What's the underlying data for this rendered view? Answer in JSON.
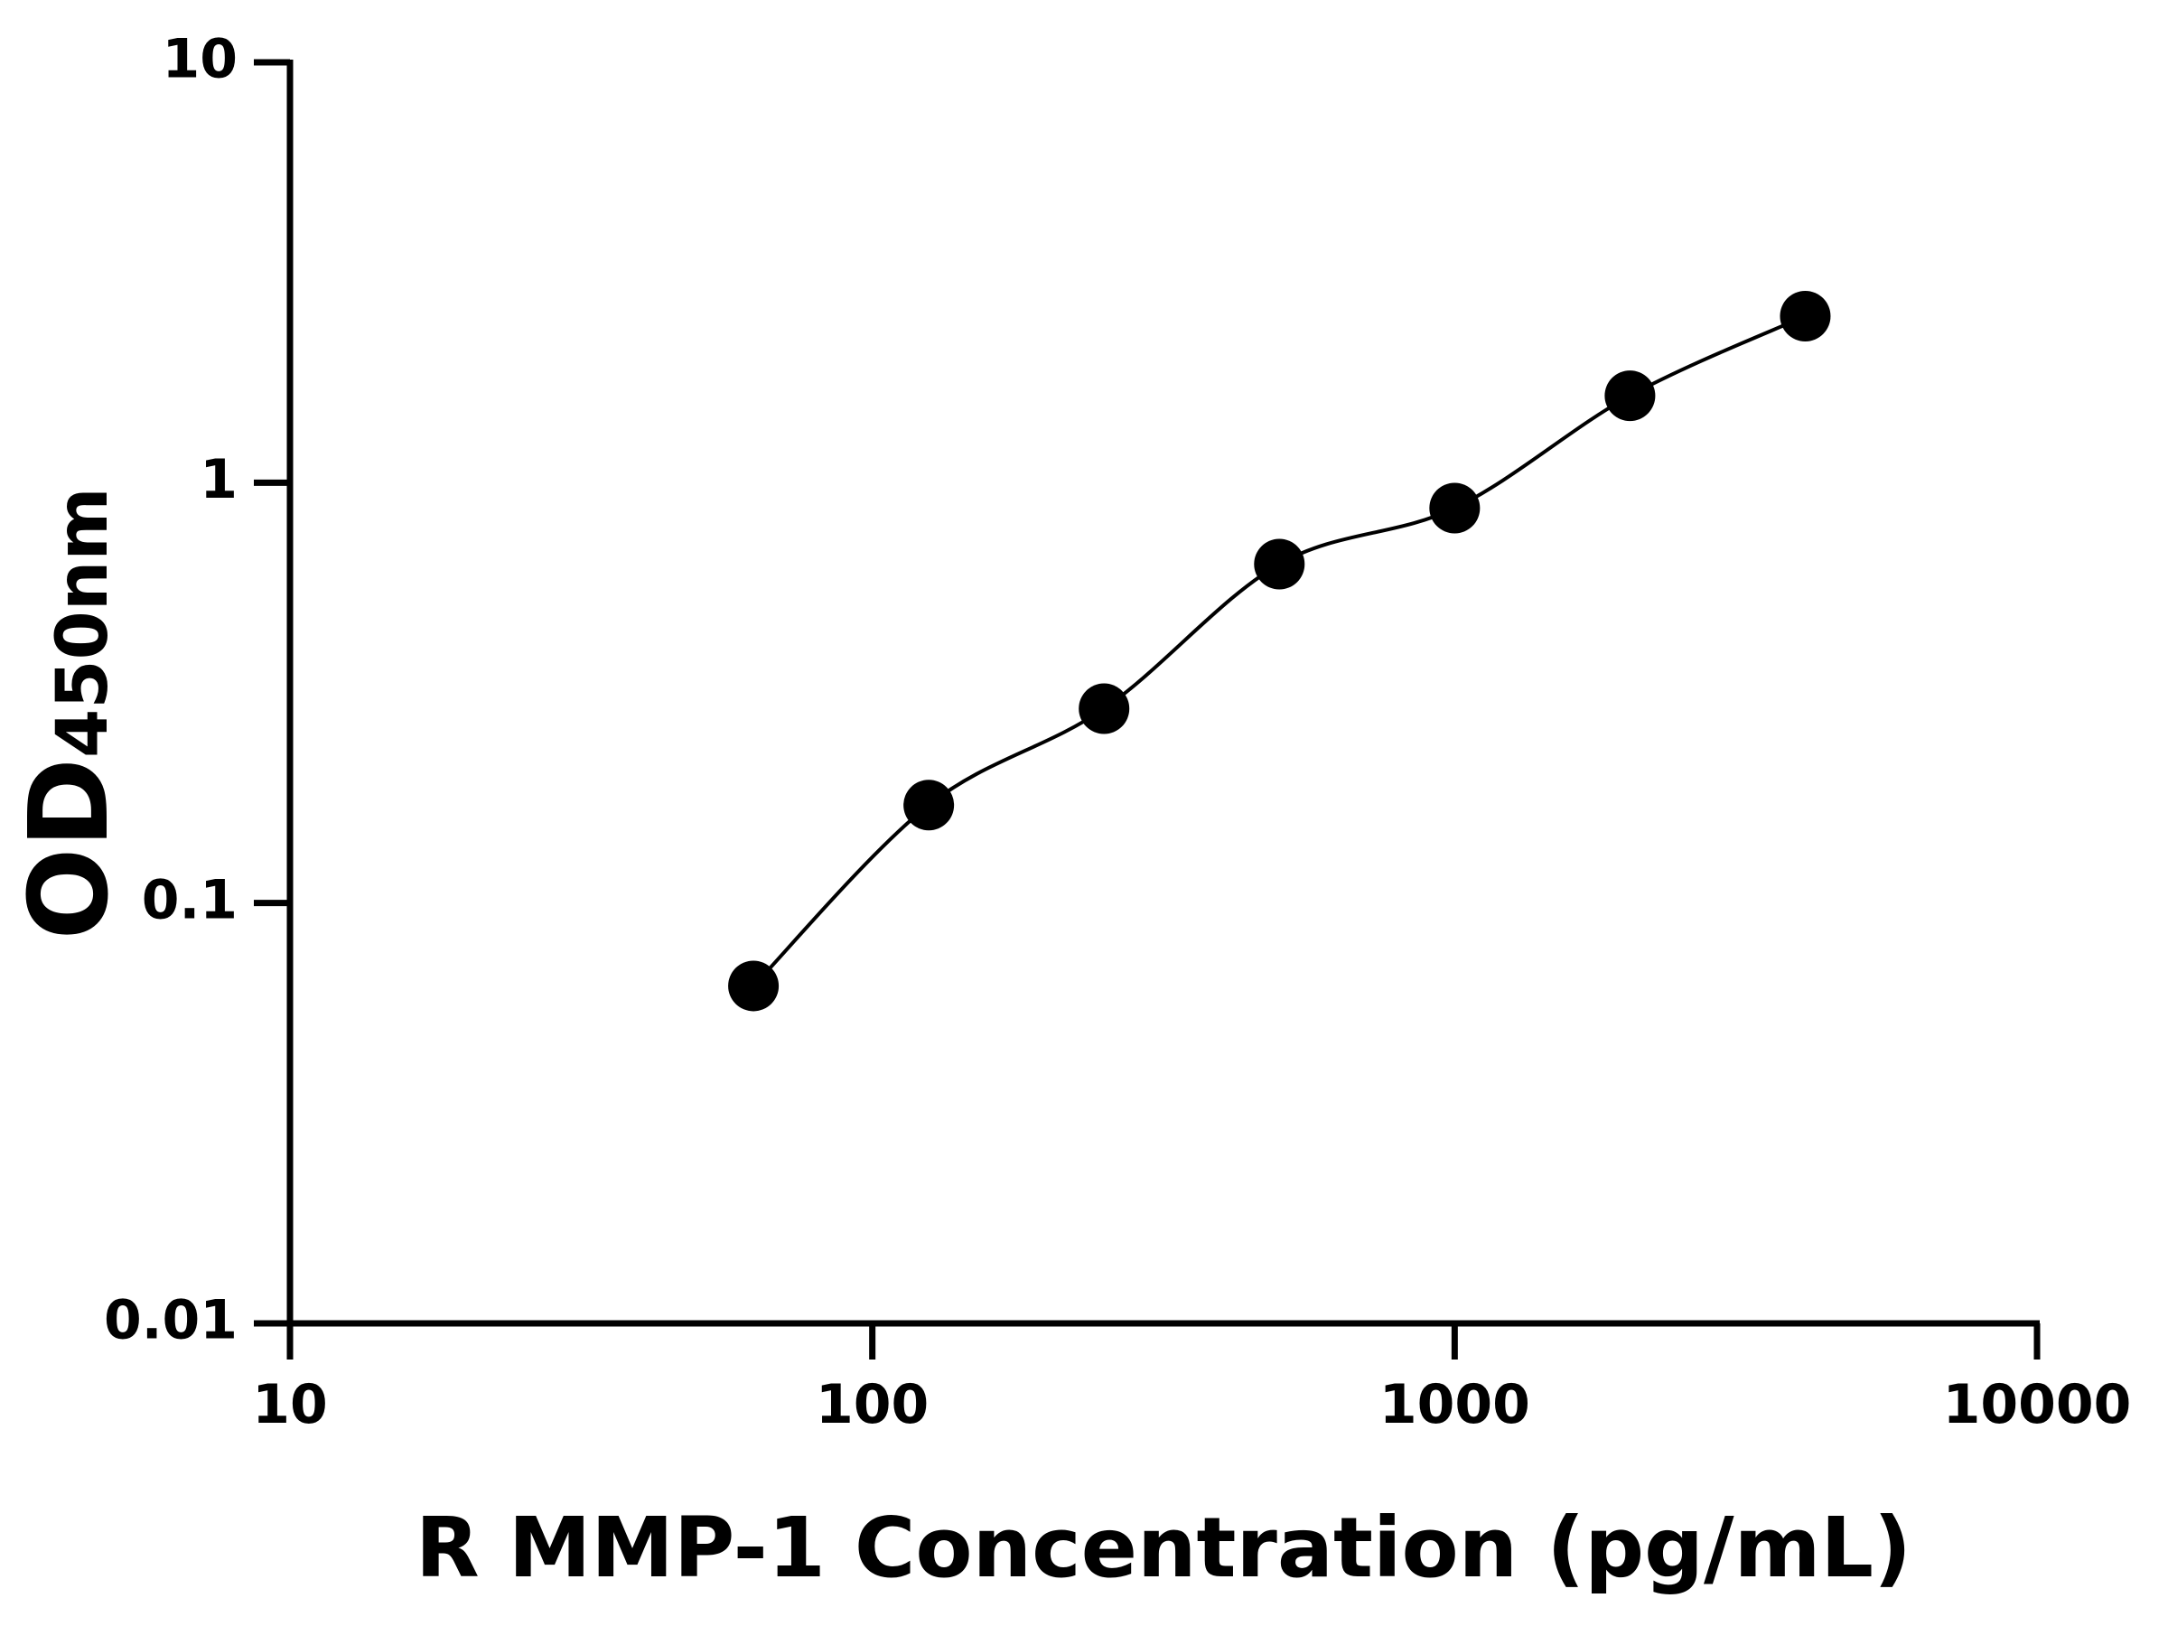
{
  "chart_data": {
    "type": "scatter",
    "x_label": "R MMP-1 Concentration (pg/mL)",
    "y_label": "OD",
    "y_label_sub": "450nm",
    "x": [
      62.5,
      125,
      250,
      500,
      1000,
      2000,
      4000
    ],
    "values": [
      0.0635,
      0.171,
      0.29,
      0.64,
      0.87,
      1.61,
      2.49
    ],
    "color": "#000000",
    "fit_line": true,
    "xlog": true,
    "ylog": true,
    "xlim": [
      10,
      10000
    ],
    "ylim": [
      0.01,
      10
    ],
    "xticks": [
      10,
      100,
      1000,
      10000
    ],
    "yticks": [
      0.01,
      0.1,
      1,
      10
    ]
  }
}
